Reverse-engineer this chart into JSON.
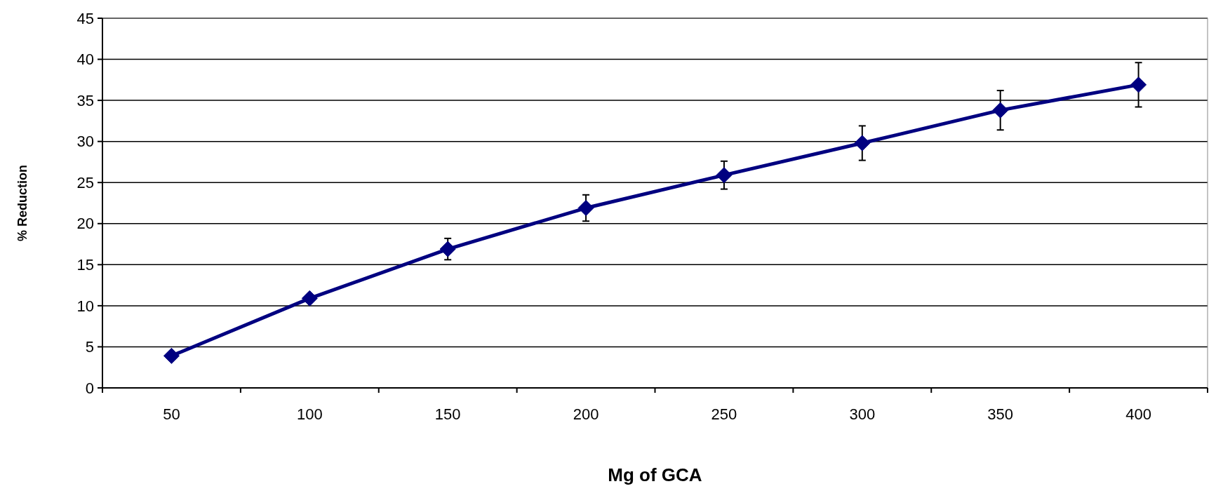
{
  "chart_data": {
    "type": "line",
    "xlabel": "Mg of GCA",
    "ylabel": "% Reduction",
    "categories": [
      "50",
      "100",
      "150",
      "200",
      "250",
      "300",
      "350",
      "400"
    ],
    "series": [
      {
        "color": "#000080",
        "values": [
          3.9,
          10.9,
          16.9,
          21.9,
          25.9,
          29.8,
          33.8,
          36.9
        ],
        "errors": [
          null,
          null,
          1.3,
          1.6,
          1.7,
          2.1,
          2.4,
          2.7
        ]
      }
    ],
    "ylim": [
      0,
      45
    ],
    "yticks": [
      0,
      5,
      10,
      15,
      20,
      25,
      30,
      35,
      40,
      45
    ],
    "grid": "y",
    "marker": "diamond",
    "line_style": "solid"
  }
}
